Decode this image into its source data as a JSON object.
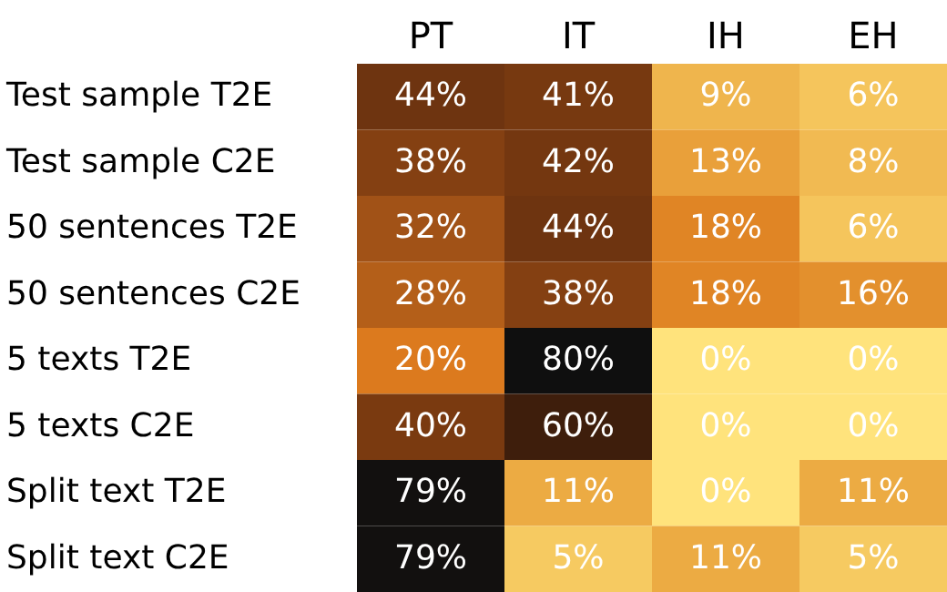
{
  "chart_data": {
    "type": "heatmap",
    "categories": [
      "PT",
      "IT",
      "IH",
      "EH"
    ],
    "y_categories": [
      "Test sample T2E",
      "Test sample C2E",
      "50 sentences T2E",
      "50 sentences C2E",
      "5 texts T2E",
      "5 texts C2E",
      "Split text T2E",
      "Split text C2E"
    ],
    "cells": [
      [
        44,
        41,
        9,
        6
      ],
      [
        38,
        42,
        13,
        8
      ],
      [
        32,
        44,
        18,
        6
      ],
      [
        28,
        38,
        18,
        16
      ],
      [
        20,
        80,
        0,
        0
      ],
      [
        40,
        60,
        0,
        0
      ],
      [
        79,
        11,
        0,
        11
      ],
      [
        79,
        5,
        11,
        5
      ]
    ],
    "cell_labels": [
      [
        "44%",
        "41%",
        "9%",
        "6%"
      ],
      [
        "38%",
        "42%",
        "13%",
        "8%"
      ],
      [
        "32%",
        "44%",
        "18%",
        "6%"
      ],
      [
        "28%",
        "38%",
        "18%",
        "16%"
      ],
      [
        "20%",
        "80%",
        "0%",
        "0%"
      ],
      [
        "40%",
        "60%",
        "0%",
        "0%"
      ],
      [
        "79%",
        "11%",
        "0%",
        "11%"
      ],
      [
        "79%",
        "5%",
        "11%",
        "5%"
      ]
    ]
  }
}
